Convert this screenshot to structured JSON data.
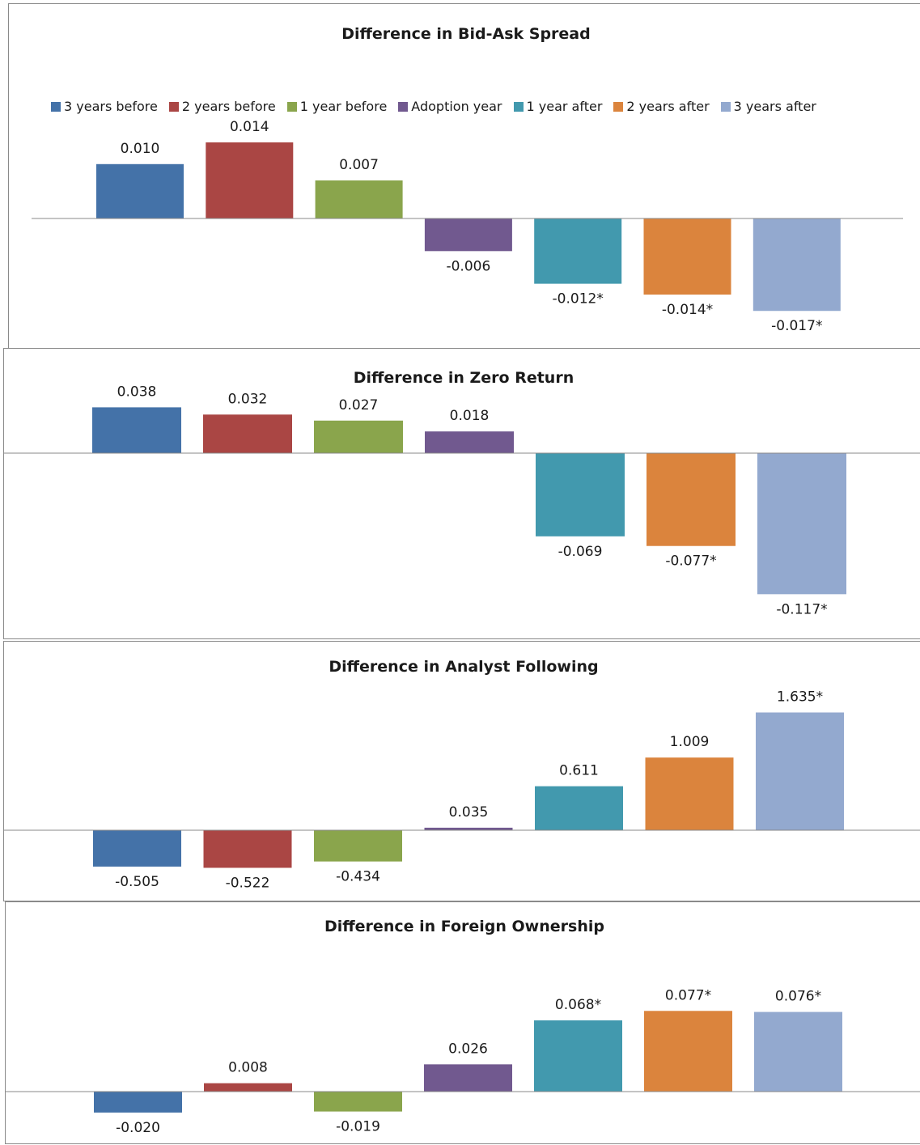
{
  "chart_data": [
    {
      "type": "bar",
      "title": "Difference in Bid-Ask Spread",
      "categories": [
        "3 years before",
        "2 years before",
        "1 year before",
        "Adoption year",
        "1 year after",
        "2 years after",
        "3 years after"
      ],
      "values": [
        0.01,
        0.014,
        0.007,
        -0.006,
        -0.012,
        -0.014,
        -0.017
      ],
      "labels": [
        "0.010",
        "0.014",
        "0.007",
        "-0.006",
        "-0.012*",
        "-0.014*",
        "-0.017*"
      ],
      "legend": "top",
      "grid": false
    },
    {
      "type": "bar",
      "title": "Difference in Zero Return",
      "categories": [
        "3 years before",
        "2 years before",
        "1 year before",
        "Adoption year",
        "1 year after",
        "2 years after",
        "3 years after"
      ],
      "values": [
        0.038,
        0.032,
        0.027,
        0.018,
        -0.069,
        -0.077,
        -0.117
      ],
      "labels": [
        "0.038",
        "0.032",
        "0.027",
        "0.018",
        "-0.069",
        "-0.077*",
        "-0.117*"
      ],
      "grid": false
    },
    {
      "type": "bar",
      "title": "Difference in Analyst Following",
      "categories": [
        "3 years before",
        "2 years before",
        "1 year before",
        "Adoption year",
        "1 year after",
        "2 years after",
        "3 years after"
      ],
      "values": [
        -0.505,
        -0.522,
        -0.434,
        0.035,
        0.611,
        1.009,
        1.635
      ],
      "labels": [
        "-0.505",
        "-0.522",
        "-0.434",
        "0.035",
        "0.611",
        "1.009",
        "1.635*"
      ],
      "grid": false
    },
    {
      "type": "bar",
      "title": "Difference in Foreign Ownership",
      "categories": [
        "3 years before",
        "2 years before",
        "1 year before",
        "Adoption year",
        "1 year after",
        "2 years after",
        "3 years after"
      ],
      "values": [
        -0.02,
        0.008,
        -0.019,
        0.026,
        0.068,
        0.077,
        0.076
      ],
      "labels": [
        "-0.020",
        "0.008",
        "-0.019",
        "0.026",
        "0.068*",
        "0.077*",
        "0.076*"
      ],
      "grid": false
    }
  ],
  "colors": [
    "#4472a8",
    "#aa4644",
    "#8aa54c",
    "#71598f",
    "#4299ae",
    "#db843d",
    "#93a9cf"
  ]
}
